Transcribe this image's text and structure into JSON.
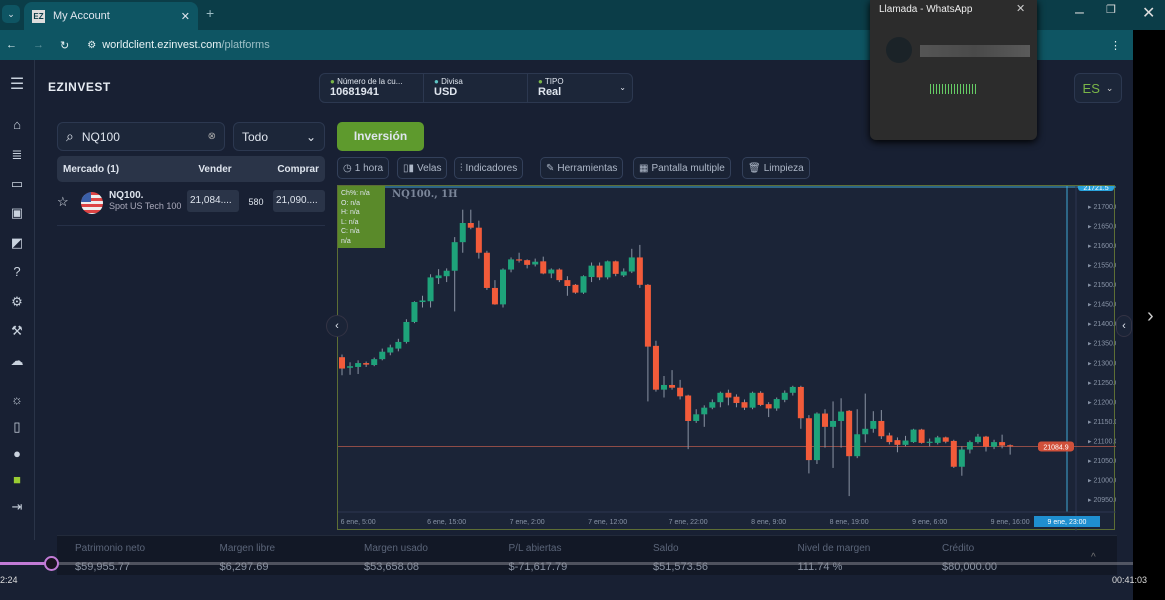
{
  "browser": {
    "tab_title": "My Account",
    "favicon": "EZ",
    "url_host": "worldclient.ezinvest.com",
    "url_path": "/platforms"
  },
  "whatsapp": {
    "title": "Llamada - WhatsApp"
  },
  "app": {
    "logo": "EZINVEST",
    "account": {
      "number_label": "Número de la cu...",
      "number": "10681941",
      "currency_label": "Divisa",
      "currency": "USD",
      "type_label": "TIPO",
      "type": "Real"
    },
    "language": "ES",
    "search": {
      "value": "NQ100",
      "filter": "Todo"
    },
    "market_header": {
      "market": "Mercado (1)",
      "sell": "Vender",
      "buy": "Comprar"
    },
    "market_rows": [
      {
        "symbol": "NQ100.",
        "name": "Spot US Tech 100",
        "sell": "21,084....",
        "spread": "580",
        "buy": "21,090...."
      }
    ],
    "invest_button": "Inversión",
    "toolbar": [
      "1 hora",
      "Velas",
      "Indicadores",
      "Herramientas",
      "Pantalla multiple",
      "Limpieza"
    ],
    "stats": [
      {
        "label": "Patrimonio neto",
        "value": "$59,955.77"
      },
      {
        "label": "Margen libre",
        "value": "$6,297.69"
      },
      {
        "label": "Margen usado",
        "value": "$53,658.08"
      },
      {
        "label": "P/L abiertas",
        "value": "$-71,617.79"
      },
      {
        "label": "Saldo",
        "value": "$51,573.56"
      },
      {
        "label": "Nivel de margen",
        "value": "111.74 %"
      },
      {
        "label": "Crédito",
        "value": "$80,000.00"
      }
    ]
  },
  "video": {
    "elapsed": "2:24",
    "total": "00:41:03",
    "progress": 0.045
  },
  "chart_data": {
    "type": "candlestick",
    "title": "NQ100., 1H",
    "legend": [
      "Ch%: n/a",
      "O: n/a",
      "H: n/a",
      "L: n/a",
      "C: n/a",
      "n/a"
    ],
    "ylim": [
      20925,
      21725
    ],
    "yticks": [
      21700,
      21650,
      21600,
      21550,
      21500,
      21450,
      21400,
      21350,
      21300,
      21250,
      21200,
      21150,
      21100,
      21050,
      21000,
      20950
    ],
    "current_price": "21084.9",
    "crosshair_price": "21721.5",
    "crosshair_time": "9 ene, 23:00",
    "xticks": [
      {
        "label": "6 ene, 5:00",
        "at": 2
      },
      {
        "label": "6 ene, 15:00",
        "at": 13
      },
      {
        "label": "7 ene, 2:00",
        "at": 23
      },
      {
        "label": "7 ene, 12:00",
        "at": 33
      },
      {
        "label": "7 ene, 22:00",
        "at": 43
      },
      {
        "label": "8 ene, 9:00",
        "at": 53
      },
      {
        "label": "8 ene, 19:00",
        "at": 63
      },
      {
        "label": "9 ene, 6:00",
        "at": 73
      },
      {
        "label": "9 ene, 16:00",
        "at": 83
      }
    ],
    "colors": {
      "up": "#1ea37a",
      "down": "#f25b3a"
    },
    "ohlc": [
      [
        21313,
        21320,
        21267,
        21284
      ],
      [
        21286,
        21300,
        21268,
        21290
      ],
      [
        21288,
        21305,
        21270,
        21298
      ],
      [
        21298,
        21302,
        21288,
        21294
      ],
      [
        21293,
        21312,
        21290,
        21308
      ],
      [
        21308,
        21335,
        21305,
        21327
      ],
      [
        21325,
        21345,
        21318,
        21338
      ],
      [
        21335,
        21360,
        21328,
        21352
      ],
      [
        21352,
        21410,
        21348,
        21403
      ],
      [
        21403,
        21456,
        21400,
        21454
      ],
      [
        21454,
        21470,
        21440,
        21458
      ],
      [
        21456,
        21525,
        21440,
        21517
      ],
      [
        21515,
        21538,
        21500,
        21522
      ],
      [
        21520,
        21540,
        21505,
        21534
      ],
      [
        21534,
        21620,
        21430,
        21607
      ],
      [
        21607,
        21690,
        21580,
        21656
      ],
      [
        21656,
        21690,
        21640,
        21644
      ],
      [
        21644,
        21662,
        21565,
        21580
      ],
      [
        21580,
        21585,
        21485,
        21490
      ],
      [
        21490,
        21510,
        21447,
        21448
      ],
      [
        21448,
        21540,
        21440,
        21537
      ],
      [
        21537,
        21568,
        21530,
        21563
      ],
      [
        21563,
        21580,
        21555,
        21560
      ],
      [
        21561,
        21563,
        21540,
        21549
      ],
      [
        21550,
        21565,
        21545,
        21557
      ],
      [
        21558,
        21570,
        21525,
        21527
      ],
      [
        21527,
        21540,
        21515,
        21537
      ],
      [
        21537,
        21540,
        21505,
        21510
      ],
      [
        21510,
        21520,
        21470,
        21495
      ],
      [
        21498,
        21500,
        21475,
        21478
      ],
      [
        21478,
        21522,
        21475,
        21520
      ],
      [
        21518,
        21555,
        21505,
        21547
      ],
      [
        21547,
        21555,
        21510,
        21517
      ],
      [
        21517,
        21560,
        21512,
        21558
      ],
      [
        21558,
        21560,
        21520,
        21526
      ],
      [
        21522,
        21540,
        21518,
        21532
      ],
      [
        21532,
        21590,
        21528,
        21568
      ],
      [
        21568,
        21600,
        21490,
        21498
      ],
      [
        21498,
        21500,
        21200,
        21340
      ],
      [
        21342,
        21355,
        21225,
        21230
      ],
      [
        21230,
        21265,
        21210,
        21242
      ],
      [
        21242,
        21280,
        21230,
        21235
      ],
      [
        21235,
        21255,
        21205,
        21213
      ],
      [
        21215,
        21217,
        21078,
        21150
      ],
      [
        21150,
        21180,
        21145,
        21167
      ],
      [
        21167,
        21190,
        21135,
        21184
      ],
      [
        21184,
        21205,
        21180,
        21198
      ],
      [
        21198,
        21225,
        21185,
        21222
      ],
      [
        21222,
        21230,
        21190,
        21210
      ],
      [
        21212,
        21218,
        21185,
        21196
      ],
      [
        21198,
        21205,
        21178,
        21184
      ],
      [
        21184,
        21225,
        21180,
        21222
      ],
      [
        21222,
        21226,
        21188,
        21191
      ],
      [
        21193,
        21198,
        21160,
        21182
      ],
      [
        21182,
        21210,
        21176,
        21206
      ],
      [
        21204,
        21228,
        21198,
        21222
      ],
      [
        21222,
        21240,
        21215,
        21237
      ],
      [
        21237,
        21240,
        21130,
        21157
      ],
      [
        21157,
        21165,
        21016,
        21050
      ],
      [
        21050,
        21172,
        21040,
        21169
      ],
      [
        21169,
        21180,
        21082,
        21135
      ],
      [
        21135,
        21200,
        21030,
        21150
      ],
      [
        21150,
        21208,
        21082,
        21174
      ],
      [
        21176,
        21178,
        20958,
        21060
      ],
      [
        21060,
        21180,
        21055,
        21116
      ],
      [
        21116,
        21220,
        21095,
        21130
      ],
      [
        21130,
        21175,
        21120,
        21150
      ],
      [
        21150,
        21178,
        21104,
        21111
      ],
      [
        21113,
        21120,
        21090,
        21096
      ],
      [
        21101,
        21108,
        21070,
        21089
      ],
      [
        21089,
        21112,
        21085,
        21100
      ],
      [
        21096,
        21130,
        21094,
        21128
      ],
      [
        21128,
        21130,
        21092,
        21094
      ],
      [
        21095,
        21105,
        21085,
        21097
      ],
      [
        21094,
        21112,
        21090,
        21108
      ],
      [
        21108,
        21110,
        21093,
        21097
      ],
      [
        21099,
        21102,
        21030,
        21033
      ],
      [
        21033,
        21085,
        21010,
        21077
      ],
      [
        21077,
        21100,
        21067,
        21096
      ],
      [
        21096,
        21117,
        21092,
        21110
      ],
      [
        21110,
        21112,
        21072,
        21084
      ],
      [
        21084,
        21102,
        21078,
        21096
      ],
      [
        21096,
        21115,
        21080,
        21087
      ],
      [
        21088,
        21090,
        21064,
        21085
      ]
    ]
  }
}
